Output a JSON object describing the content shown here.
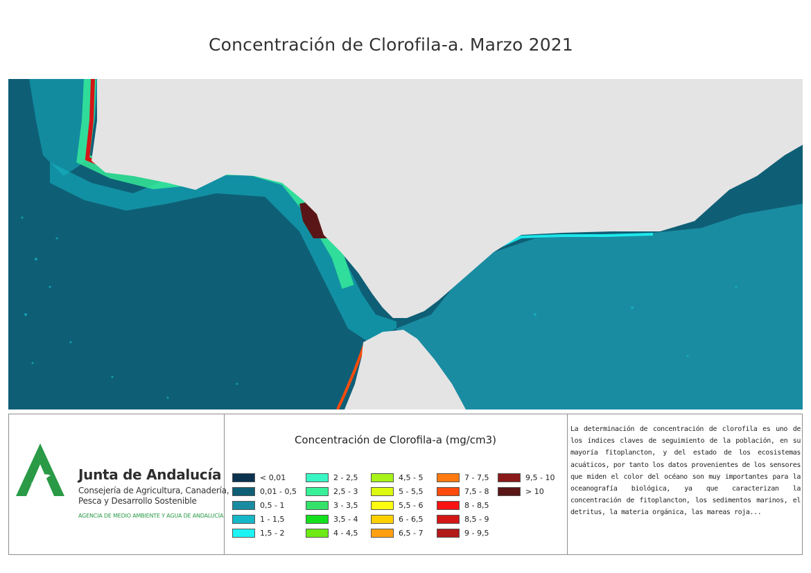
{
  "map": {
    "title": "Concentración de Clorofila-a. Marzo 2021",
    "land_color": "#e4e4e4",
    "ocean_deep_color": "#0e5f76",
    "ocean_shelf_color": "#1a8ca2"
  },
  "branding": {
    "name": "Junta de Andalucía",
    "subtitle_line1": "Consejería de Agricultura, Canadería,",
    "subtitle_line2": "Pesca y Desarrollo Sostenible",
    "agency": "AGENCIA DE MEDIO AMBIENTE Y AGUA DE ANDALUCÍA",
    "logo_color": "#2a9a46"
  },
  "legend": {
    "title": "Concentración de Clorofila-a (mg/cm3)",
    "items": [
      {
        "label": "< 0,01",
        "color": "#0b3350"
      },
      {
        "label": "0,01 - 0,5",
        "color": "#0e5f76"
      },
      {
        "label": "0,5 - 1",
        "color": "#1a8ca2"
      },
      {
        "label": "1 - 1,5",
        "color": "#16b8c8"
      },
      {
        "label": "1,5 - 2",
        "color": "#1ef4f4"
      },
      {
        "label": "2 - 2,5",
        "color": "#38f7c4"
      },
      {
        "label": "2,5 - 3",
        "color": "#38f098"
      },
      {
        "label": "3 - 3,5",
        "color": "#34e26a"
      },
      {
        "label": "3,5 - 4",
        "color": "#14e01e"
      },
      {
        "label": "4 - 4,5",
        "color": "#6eea16"
      },
      {
        "label": "4,5 - 5",
        "color": "#a7f31a"
      },
      {
        "label": "5 - 5,5",
        "color": "#ddfb10"
      },
      {
        "label": "5,5 - 6",
        "color": "#fdfd12"
      },
      {
        "label": "6 - 6,5",
        "color": "#ffd000"
      },
      {
        "label": "6,5 - 7",
        "color": "#ffa010"
      },
      {
        "label": "7 - 7,5",
        "color": "#ff7a0e"
      },
      {
        "label": "7,5 - 8",
        "color": "#ff4c0c"
      },
      {
        "label": "8 - 8,5",
        "color": "#f81412"
      },
      {
        "label": "8,5 - 9",
        "color": "#d41616"
      },
      {
        "label": "9 - 9,5",
        "color": "#b31a1a"
      },
      {
        "label": "9,5 - 10",
        "color": "#8a1a1a"
      },
      {
        "label": "> 10",
        "color": "#5a1616"
      }
    ]
  },
  "description": "La determinación de concentración de clorofila es uno de los índices claves de seguimiento de la población, en su mayoría fitoplancton, y del estado de los ecosistemas acuáticos, por tanto los datos provenientes de los sensores que miden el color del océano son muy importantes para la oceanografía biológica, ya que caracterizan la concentración de fitoplancton, los sedimentos marinos, el detritus, la materia orgánica, las mareas roja..."
}
